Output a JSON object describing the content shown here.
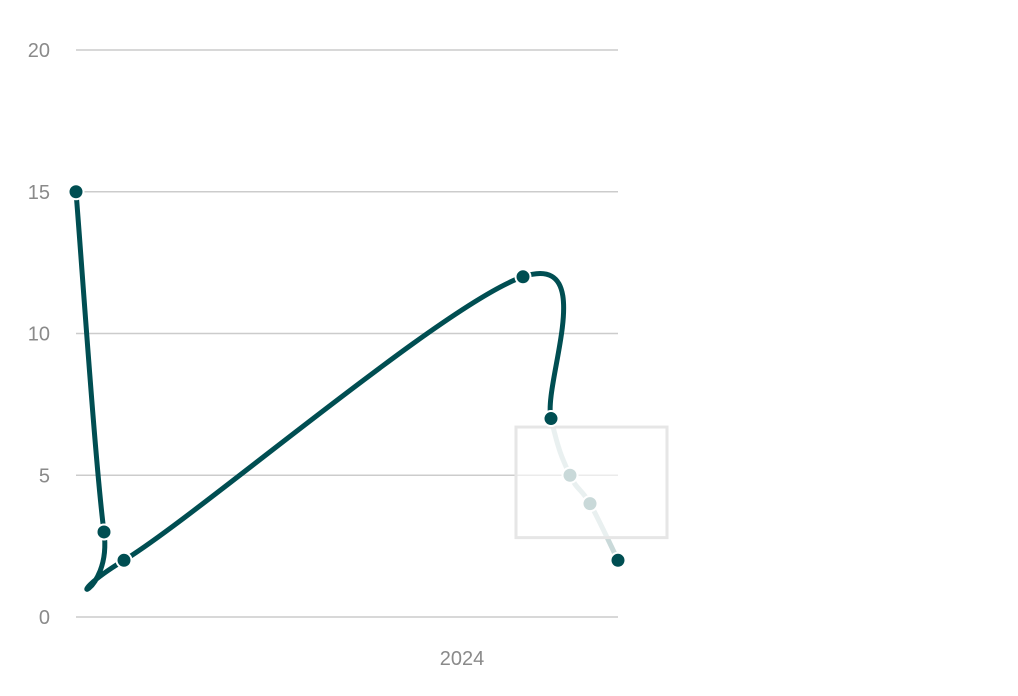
{
  "chart_data": {
    "type": "line",
    "title": "",
    "xlabel": "",
    "ylabel": "",
    "x_tick_labels": [
      "2024"
    ],
    "y_ticks": [
      "0",
      "5",
      "10",
      "15",
      "20"
    ],
    "ylim": [
      0,
      20
    ],
    "grid": true,
    "legend": "none",
    "series": [
      {
        "color": "#004e52",
        "faded_color": "#c9d9d9",
        "points": [
          {
            "x": "2023-01",
            "y": 15,
            "faded": false
          },
          {
            "x": "2023-02",
            "y": 3,
            "faded": false
          },
          {
            "x": "2023-03",
            "y": 2,
            "faded": false
          },
          {
            "x": "2024-01",
            "y": 12,
            "faded": false
          },
          {
            "x": "2024-02",
            "y": 7,
            "faded": false
          },
          {
            "x": "2024-03",
            "y": 5,
            "faded": true
          },
          {
            "x": "2024-04",
            "y": 4,
            "faded": true
          },
          {
            "x": "2024-05",
            "y": 2,
            "faded": false
          }
        ]
      }
    ],
    "selection_box": {
      "y_range": [
        2.8,
        6.7
      ]
    }
  }
}
